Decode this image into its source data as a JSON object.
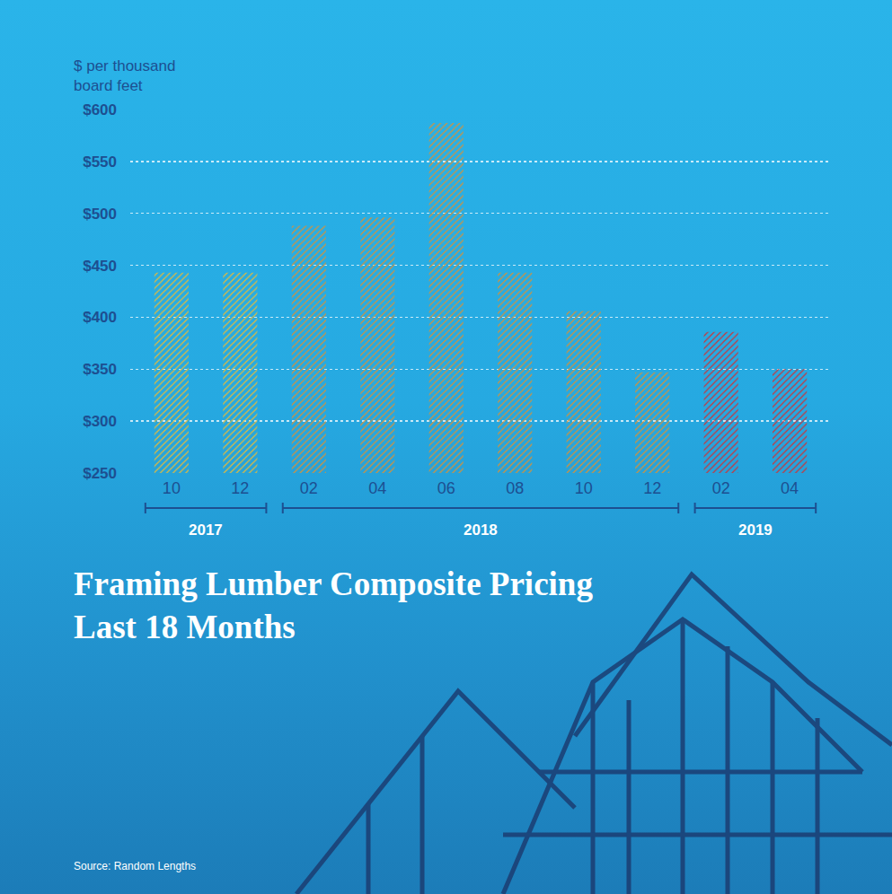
{
  "chart_data": {
    "type": "bar",
    "title": "Framing Lumber Composite Pricing Last 18 Months",
    "ylabel": "$ per thousand board feet",
    "source": "Source: Random Lengths",
    "categories": [
      "10",
      "12",
      "02",
      "04",
      "06",
      "08",
      "10",
      "12",
      "02",
      "04"
    ],
    "years": [
      "2017",
      "2017",
      "2018",
      "2018",
      "2018",
      "2018",
      "2018",
      "2018",
      "2019",
      "2019"
    ],
    "values": [
      443,
      443,
      488,
      496,
      587,
      443,
      406,
      347,
      386,
      350
    ],
    "colors": [
      "#e2b93b",
      "#e2b93b",
      "#d4913a",
      "#d4913a",
      "#d4913a",
      "#d4913a",
      "#d4913a",
      "#d4913a",
      "#c9363a",
      "#c9363a"
    ],
    "ylim": [
      250,
      600
    ],
    "yticks": [
      {
        "value": 250,
        "label": "$250"
      },
      {
        "value": 300,
        "label": "$300"
      },
      {
        "value": 350,
        "label": "$350"
      },
      {
        "value": 400,
        "label": "$400"
      },
      {
        "value": 450,
        "label": "$450"
      },
      {
        "value": 500,
        "label": "$500"
      },
      {
        "value": 550,
        "label": "$550"
      },
      {
        "value": 600,
        "label": "$600"
      }
    ],
    "grid": true
  }
}
